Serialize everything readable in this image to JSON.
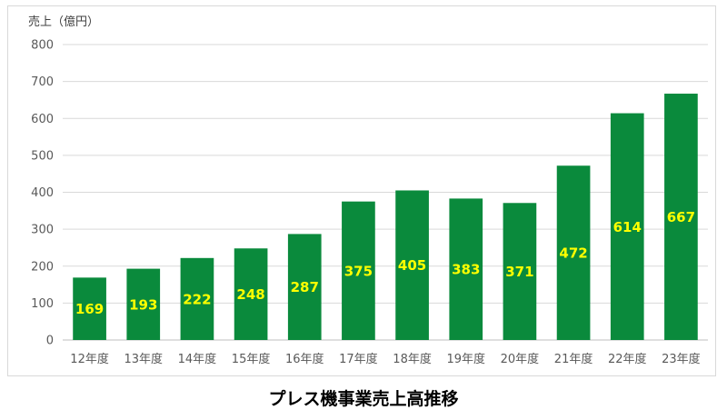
{
  "chart_data": {
    "type": "bar",
    "ylabel": "売上（億円）",
    "categories": [
      "12年度",
      "13年度",
      "14年度",
      "15年度",
      "16年度",
      "17年度",
      "18年度",
      "19年度",
      "20年度",
      "21年度",
      "22年度",
      "23年度"
    ],
    "values": [
      169,
      193,
      222,
      248,
      287,
      375,
      405,
      383,
      371,
      472,
      614,
      667
    ],
    "ylim": [
      0,
      800
    ],
    "yticks": [
      "0",
      "100",
      "200",
      "300",
      "400",
      "500",
      "600",
      "700",
      "800"
    ],
    "grid": true,
    "bar_color": "#0a8a3c",
    "label_color": "#ffff00"
  },
  "caption": "プレス機事業売上高推移"
}
